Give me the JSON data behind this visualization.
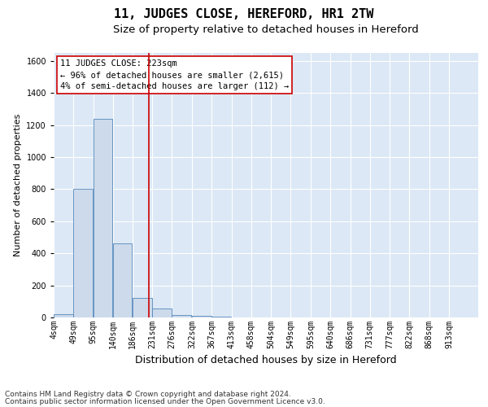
{
  "title": "11, JUDGES CLOSE, HEREFORD, HR1 2TW",
  "subtitle": "Size of property relative to detached houses in Hereford",
  "xlabel": "Distribution of detached houses by size in Hereford",
  "ylabel": "Number of detached properties",
  "footnote1": "Contains HM Land Registry data © Crown copyright and database right 2024.",
  "footnote2": "Contains public sector information licensed under the Open Government Licence v3.0.",
  "annotation_line1": "11 JUDGES CLOSE: 223sqm",
  "annotation_line2": "← 96% of detached houses are smaller (2,615)",
  "annotation_line3": "4% of semi-detached houses are larger (112) →",
  "bar_color": "#ccdaeb",
  "bar_edge_color": "#5588bb",
  "vline_color": "#cc0000",
  "vline_x_bin": 5,
  "categories": [
    "4sqm",
    "49sqm",
    "95sqm",
    "140sqm",
    "186sqm",
    "231sqm",
    "276sqm",
    "322sqm",
    "367sqm",
    "413sqm",
    "458sqm",
    "504sqm",
    "549sqm",
    "595sqm",
    "640sqm",
    "686sqm",
    "731sqm",
    "777sqm",
    "822sqm",
    "868sqm",
    "913sqm"
  ],
  "bin_starts": [
    4,
    49,
    95,
    140,
    186,
    231,
    276,
    322,
    367,
    413,
    458,
    504,
    549,
    595,
    640,
    686,
    731,
    777,
    822,
    868,
    913
  ],
  "bin_width": 45,
  "values": [
    20,
    800,
    1240,
    460,
    120,
    55,
    15,
    10,
    5,
    2,
    1,
    0,
    0,
    0,
    0,
    0,
    0,
    0,
    0,
    0,
    0
  ],
  "ylim": [
    0,
    1650
  ],
  "yticks": [
    0,
    200,
    400,
    600,
    800,
    1000,
    1200,
    1400,
    1600
  ],
  "background_color": "#dce8f5",
  "grid_color": "#ffffff",
  "title_fontsize": 11,
  "subtitle_fontsize": 9.5,
  "xlabel_fontsize": 9,
  "ylabel_fontsize": 8,
  "tick_fontsize": 7,
  "annotation_fontsize": 7.5,
  "footnote_fontsize": 6.5
}
